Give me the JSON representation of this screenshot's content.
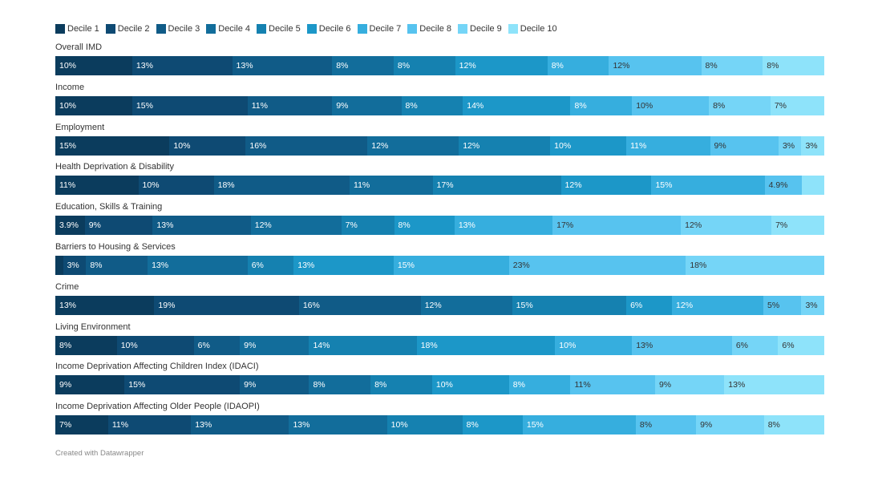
{
  "chart_data": {
    "type": "bar",
    "orientation": "horizontal",
    "stacked": true,
    "legend": [
      "Decile 1",
      "Decile 2",
      "Decile 3",
      "Decile 4",
      "Decile 5",
      "Decile 6",
      "Decile 7",
      "Decile 8",
      "Decile 9",
      "Decile 10"
    ],
    "legend_position": "top-left",
    "colors": [
      "#0b3c5d",
      "#0e4a73",
      "#105b87",
      "#126d9b",
      "#1581b0",
      "#1c97c8",
      "#36aede",
      "#57c3ef",
      "#75d5f7",
      "#8ee3fa"
    ],
    "label_colors": [
      "#ffffff",
      "#ffffff",
      "#ffffff",
      "#ffffff",
      "#ffffff",
      "#ffffff",
      "#ffffff",
      "#333333",
      "#333333",
      "#333333"
    ],
    "categories": [
      "Overall IMD",
      "Income",
      "Employment",
      "Health Deprivation & Disability",
      "Education, Skills & Training",
      "Barriers to Housing & Services",
      "Crime",
      "Living Environment",
      "Income Deprivation Affecting Children Index (IDACI)",
      "Income Deprivation Affecting Older People (IDAOPI)"
    ],
    "values": [
      [
        10,
        13,
        13,
        8,
        8,
        12,
        8,
        12,
        8,
        8
      ],
      [
        10,
        15,
        11,
        9,
        8,
        14,
        8,
        10,
        8,
        7
      ],
      [
        15,
        10,
        16,
        12,
        12,
        10,
        11,
        9,
        3,
        3
      ],
      [
        11,
        10,
        18,
        11,
        17,
        12,
        15,
        4.9,
        0,
        3
      ],
      [
        3.9,
        9,
        13,
        12,
        7,
        8,
        13,
        17,
        12,
        7
      ],
      [
        1,
        3,
        8,
        13,
        6,
        13,
        15,
        23,
        18,
        0
      ],
      [
        13,
        19,
        16,
        12,
        15,
        6,
        12,
        5,
        3,
        0
      ],
      [
        8,
        10,
        6,
        9,
        14,
        18,
        10,
        13,
        6,
        6
      ],
      [
        9,
        15,
        9,
        8,
        8,
        10,
        8,
        11,
        9,
        13
      ],
      [
        7,
        11,
        13,
        13,
        10,
        8,
        15,
        8,
        9,
        8
      ]
    ],
    "labels": [
      [
        "10%",
        "13%",
        "13%",
        "8%",
        "8%",
        "12%",
        "8%",
        "12%",
        "8%",
        "8%"
      ],
      [
        "10%",
        "15%",
        "11%",
        "9%",
        "8%",
        "14%",
        "8%",
        "10%",
        "8%",
        "7%"
      ],
      [
        "15%",
        "10%",
        "16%",
        "12%",
        "12%",
        "10%",
        "11%",
        "9%",
        "3%",
        "3%"
      ],
      [
        "11%",
        "10%",
        "18%",
        "11%",
        "17%",
        "12%",
        "15%",
        "4.9%",
        "",
        ""
      ],
      [
        "3.9%",
        "9%",
        "13%",
        "12%",
        "7%",
        "8%",
        "13%",
        "17%",
        "12%",
        "7%"
      ],
      [
        "",
        "3%",
        "8%",
        "13%",
        "6%",
        "13%",
        "15%",
        "23%",
        "18%",
        ""
      ],
      [
        "13%",
        "19%",
        "16%",
        "12%",
        "15%",
        "6%",
        "12%",
        "5%",
        "3%",
        ""
      ],
      [
        "8%",
        "10%",
        "6%",
        "9%",
        "14%",
        "18%",
        "10%",
        "13%",
        "6%",
        "6%"
      ],
      [
        "9%",
        "15%",
        "9%",
        "8%",
        "8%",
        "10%",
        "8%",
        "11%",
        "9%",
        "13%"
      ],
      [
        "7%",
        "11%",
        "13%",
        "13%",
        "10%",
        "8%",
        "15%",
        "8%",
        "9%",
        "8%"
      ]
    ],
    "title": "",
    "xlabel": "",
    "ylabel": "",
    "grid": false
  },
  "footer": {
    "text": "Created with Datawrapper"
  }
}
